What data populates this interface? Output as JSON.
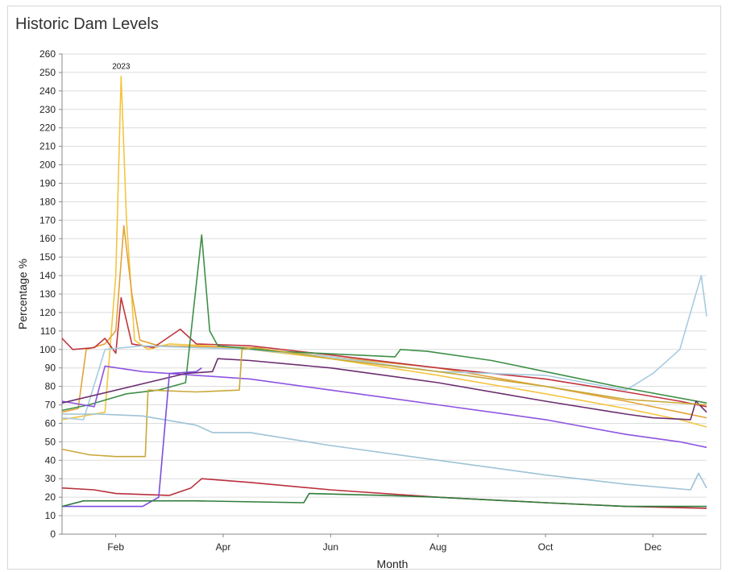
{
  "chart_data": {
    "type": "line",
    "title": "Historic Dam Levels",
    "xlabel": "Month",
    "ylabel": "Percentage %",
    "ylim": [
      0,
      260
    ],
    "ytick_step": 10,
    "xlim": [
      0,
      12
    ],
    "x_ticks": [
      {
        "label": "Feb",
        "x": 1.0
      },
      {
        "label": "Apr",
        "x": 3.0
      },
      {
        "label": "Jun",
        "x": 5.0
      },
      {
        "label": "Aug",
        "x": 7.0
      },
      {
        "label": "Oct",
        "x": 9.0
      },
      {
        "label": "Dec",
        "x": 11.0
      }
    ],
    "annotation": {
      "text": "2023",
      "x": 1.1,
      "y": 252
    },
    "grid": true,
    "series": [
      {
        "color": "#f4c542",
        "points": [
          [
            0,
            62
          ],
          [
            0.4,
            64
          ],
          [
            0.8,
            66
          ],
          [
            1.0,
            140
          ],
          [
            1.1,
            248
          ],
          [
            1.2,
            170
          ],
          [
            1.35,
            105
          ],
          [
            1.6,
            100
          ],
          [
            2.0,
            103
          ],
          [
            2.7,
            102
          ],
          [
            3.5,
            100
          ],
          [
            5.0,
            95
          ],
          [
            7.0,
            86
          ],
          [
            9.0,
            76
          ],
          [
            10.5,
            68
          ],
          [
            11.5,
            62
          ],
          [
            12,
            58
          ]
        ]
      },
      {
        "color": "#e3a33a",
        "points": [
          [
            0,
            66
          ],
          [
            0.3,
            68
          ],
          [
            0.45,
            100
          ],
          [
            0.8,
            103
          ],
          [
            1.0,
            110
          ],
          [
            1.15,
            167
          ],
          [
            1.3,
            130
          ],
          [
            1.45,
            105
          ],
          [
            1.8,
            102
          ],
          [
            3.5,
            101
          ],
          [
            5.0,
            96
          ],
          [
            7.0,
            90
          ],
          [
            9.0,
            80
          ],
          [
            10.5,
            72
          ],
          [
            11.5,
            66
          ],
          [
            12,
            63
          ]
        ]
      },
      {
        "color": "#c0343f",
        "points": [
          [
            0,
            106
          ],
          [
            0.2,
            100
          ],
          [
            0.6,
            101
          ],
          [
            0.8,
            106
          ],
          [
            1.0,
            98
          ],
          [
            1.1,
            128
          ],
          [
            1.3,
            103
          ],
          [
            1.7,
            101
          ],
          [
            2.2,
            111
          ],
          [
            2.5,
            103
          ],
          [
            3.5,
            102
          ],
          [
            5.0,
            97
          ],
          [
            7.0,
            90
          ],
          [
            9.0,
            84
          ],
          [
            10.5,
            77
          ],
          [
            11.5,
            72
          ],
          [
            12,
            69
          ]
        ]
      },
      {
        "color": "#a7cbe0",
        "points": [
          [
            0,
            63
          ],
          [
            0.4,
            62
          ],
          [
            0.8,
            100
          ],
          [
            1.5,
            102
          ],
          [
            3.5,
            100
          ],
          [
            5.0,
            96
          ],
          [
            7.0,
            88
          ],
          [
            9.0,
            86
          ],
          [
            10.5,
            78
          ],
          [
            11.0,
            87
          ],
          [
            11.5,
            100
          ],
          [
            11.9,
            140
          ],
          [
            12,
            118
          ]
        ]
      },
      {
        "color": "#3e8f47",
        "points": [
          [
            0,
            67
          ],
          [
            0.5,
            70
          ],
          [
            1.2,
            76
          ],
          [
            1.8,
            78
          ],
          [
            2.3,
            82
          ],
          [
            2.6,
            162
          ],
          [
            2.75,
            110
          ],
          [
            2.9,
            102
          ],
          [
            4.0,
            99
          ],
          [
            6.2,
            96
          ],
          [
            6.3,
            100
          ],
          [
            6.8,
            99
          ],
          [
            8.0,
            94
          ],
          [
            9.0,
            88
          ],
          [
            10.5,
            79
          ],
          [
            12,
            71
          ]
        ]
      },
      {
        "color": "#8e54e0",
        "points": [
          [
            0,
            72
          ],
          [
            0.6,
            69
          ],
          [
            0.8,
            91
          ],
          [
            1.5,
            88
          ],
          [
            2.5,
            86
          ],
          [
            3.5,
            84
          ],
          [
            5.0,
            78
          ],
          [
            7.0,
            70
          ],
          [
            9.0,
            62
          ],
          [
            10.5,
            54
          ],
          [
            11.5,
            50
          ],
          [
            12,
            47
          ]
        ]
      },
      {
        "color": "#6b2d6f",
        "points": [
          [
            0,
            71
          ],
          [
            2.3,
            87
          ],
          [
            2.8,
            88
          ],
          [
            2.9,
            95
          ],
          [
            3.5,
            94
          ],
          [
            5.0,
            90
          ],
          [
            7.0,
            82
          ],
          [
            9.0,
            72
          ],
          [
            10.5,
            65
          ],
          [
            11.0,
            63
          ],
          [
            11.7,
            62
          ],
          [
            11.8,
            72
          ],
          [
            12,
            66
          ]
        ]
      },
      {
        "color": "#c9a93a",
        "points": [
          [
            0,
            46
          ],
          [
            0.5,
            43
          ],
          [
            1.0,
            42
          ],
          [
            1.55,
            42
          ],
          [
            1.6,
            78
          ],
          [
            2.5,
            77
          ],
          [
            3.3,
            78
          ],
          [
            3.35,
            100
          ],
          [
            3.6,
            101
          ],
          [
            5.0,
            95
          ],
          [
            7.0,
            88
          ],
          [
            9.0,
            80
          ],
          [
            10.5,
            73
          ],
          [
            12,
            70
          ]
        ]
      },
      {
        "color": "#9ec3d6",
        "points": [
          [
            0,
            65
          ],
          [
            0.7,
            65
          ],
          [
            1.5,
            64
          ],
          [
            2.5,
            59
          ],
          [
            2.8,
            55
          ],
          [
            3.5,
            55
          ],
          [
            5.0,
            48
          ],
          [
            7.0,
            40
          ],
          [
            9.0,
            32
          ],
          [
            10.5,
            27
          ],
          [
            11.7,
            24
          ],
          [
            11.85,
            33
          ],
          [
            12,
            25
          ]
        ]
      },
      {
        "color": "#b8303c",
        "points": [
          [
            0,
            25
          ],
          [
            0.6,
            24
          ],
          [
            1.0,
            22
          ],
          [
            2.0,
            21
          ],
          [
            2.4,
            25
          ],
          [
            2.6,
            30
          ],
          [
            3.5,
            28
          ],
          [
            5.0,
            24
          ],
          [
            7.0,
            20
          ],
          [
            9.0,
            17
          ],
          [
            10.5,
            15
          ],
          [
            12,
            14
          ]
        ]
      },
      {
        "color": "#7d4cdb",
        "points": [
          [
            0,
            15
          ],
          [
            1.5,
            15
          ],
          [
            1.8,
            20
          ],
          [
            2.0,
            87
          ],
          [
            2.5,
            88
          ],
          [
            2.6,
            90
          ]
        ]
      },
      {
        "color": "#2f7d3b",
        "points": [
          [
            0,
            15
          ],
          [
            0.4,
            18
          ],
          [
            1.0,
            18
          ],
          [
            2.5,
            18
          ],
          [
            4.5,
            17
          ],
          [
            4.6,
            22
          ],
          [
            6.0,
            21
          ],
          [
            7.0,
            20
          ],
          [
            9.0,
            17
          ],
          [
            10.5,
            15
          ],
          [
            12,
            15
          ]
        ]
      }
    ]
  }
}
